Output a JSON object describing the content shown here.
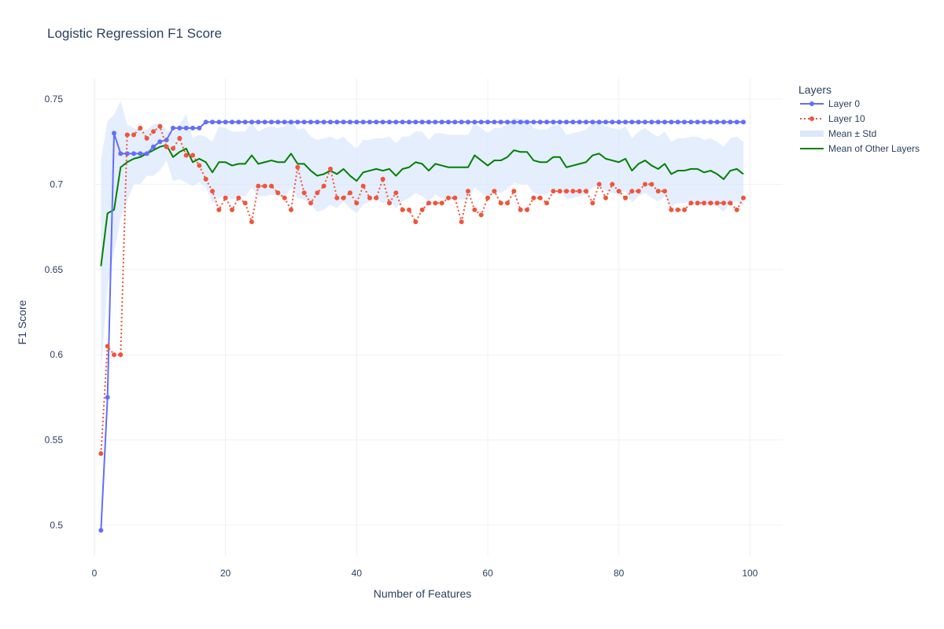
{
  "chart_data": {
    "type": "line",
    "title": "Logistic Regression F1 Score",
    "xlabel": "Number of Features",
    "ylabel": "F1 Score",
    "xlim": [
      0,
      105
    ],
    "ylim": [
      0.482,
      0.762
    ],
    "xticks": [
      0,
      20,
      40,
      60,
      80,
      100
    ],
    "yticks": [
      0.5,
      0.55,
      0.6,
      0.65,
      0.7,
      0.75
    ],
    "ytick_labels": [
      "0.5",
      "0.55",
      "0.6",
      "0.65",
      "0.7",
      "0.75"
    ],
    "grid": true,
    "legend_title": "Layers",
    "legend_position": "top-right outside",
    "x": [
      1,
      2,
      3,
      4,
      5,
      6,
      7,
      8,
      9,
      10,
      11,
      12,
      13,
      14,
      15,
      16,
      17,
      18,
      19,
      20,
      21,
      22,
      23,
      24,
      25,
      26,
      27,
      28,
      29,
      30,
      31,
      32,
      33,
      34,
      35,
      36,
      37,
      38,
      39,
      40,
      41,
      42,
      43,
      44,
      45,
      46,
      47,
      48,
      49,
      50,
      51,
      52,
      53,
      54,
      55,
      56,
      57,
      58,
      59,
      60,
      61,
      62,
      63,
      64,
      65,
      66,
      67,
      68,
      69,
      70,
      71,
      72,
      73,
      74,
      75,
      76,
      77,
      78,
      79,
      80,
      81,
      82,
      83,
      84,
      85,
      86,
      87,
      88,
      89,
      90,
      91,
      92,
      93,
      94,
      95,
      96,
      97,
      98,
      99
    ],
    "series": [
      {
        "name": "Layer 0",
        "color": "#636efa",
        "dash": "solid",
        "markers": true,
        "values": [
          0.497,
          0.575,
          0.73,
          0.718,
          0.718,
          0.718,
          0.718,
          0.718,
          0.722,
          0.725,
          0.726,
          0.733,
          0.733,
          0.733,
          0.733,
          0.733,
          0.7365,
          0.7365,
          0.7365,
          0.7365,
          0.7365,
          0.7365,
          0.7365,
          0.7365,
          0.7365,
          0.7365,
          0.7365,
          0.7365,
          0.7365,
          0.7365,
          0.7365,
          0.7365,
          0.7365,
          0.7365,
          0.7365,
          0.7365,
          0.7365,
          0.7365,
          0.7365,
          0.7365,
          0.7365,
          0.7365,
          0.7365,
          0.7365,
          0.7365,
          0.7365,
          0.7365,
          0.7365,
          0.7365,
          0.7365,
          0.7365,
          0.7365,
          0.7365,
          0.7365,
          0.7365,
          0.7365,
          0.7365,
          0.7365,
          0.7365,
          0.7365,
          0.7365,
          0.7365,
          0.7365,
          0.7365,
          0.7365,
          0.7365,
          0.7365,
          0.7365,
          0.7365,
          0.7365,
          0.7365,
          0.7365,
          0.7365,
          0.7365,
          0.7365,
          0.7365,
          0.7365,
          0.7365,
          0.7365,
          0.7365,
          0.7365,
          0.7365,
          0.7365,
          0.7365,
          0.7365,
          0.7365,
          0.7365,
          0.7365,
          0.7365,
          0.7365,
          0.7365,
          0.7365,
          0.7365,
          0.7365,
          0.7365,
          0.7365,
          0.7365,
          0.7365,
          0.7365
        ]
      },
      {
        "name": "Layer 10",
        "color": "#ef553b",
        "dash": "dot",
        "markers": true,
        "values": [
          0.542,
          0.605,
          0.6,
          0.6,
          0.729,
          0.729,
          0.733,
          0.727,
          0.731,
          0.734,
          0.722,
          0.721,
          0.727,
          0.717,
          0.717,
          0.711,
          0.703,
          0.696,
          0.685,
          0.692,
          0.685,
          0.692,
          0.689,
          0.678,
          0.699,
          0.699,
          0.699,
          0.695,
          0.692,
          0.685,
          0.71,
          0.695,
          0.689,
          0.695,
          0.699,
          0.709,
          0.692,
          0.692,
          0.695,
          0.689,
          0.699,
          0.692,
          0.692,
          0.703,
          0.689,
          0.695,
          0.685,
          0.685,
          0.678,
          0.685,
          0.689,
          0.689,
          0.689,
          0.692,
          0.692,
          0.678,
          0.696,
          0.685,
          0.682,
          0.692,
          0.696,
          0.689,
          0.689,
          0.696,
          0.685,
          0.685,
          0.692,
          0.692,
          0.689,
          0.696,
          0.696,
          0.696,
          0.696,
          0.696,
          0.696,
          0.689,
          0.7,
          0.692,
          0.7,
          0.696,
          0.692,
          0.696,
          0.696,
          0.7,
          0.7,
          0.696,
          0.696,
          0.685,
          0.685,
          0.685,
          0.689,
          0.689,
          0.689,
          0.689,
          0.689,
          0.689,
          0.689,
          0.685,
          0.692
        ]
      },
      {
        "name": "Mean of Other Layers",
        "color": "#008000",
        "dash": "solid",
        "markers": false,
        "values": [
          0.652,
          0.683,
          0.685,
          0.71,
          0.713,
          0.715,
          0.716,
          0.718,
          0.72,
          0.722,
          0.723,
          0.716,
          0.719,
          0.721,
          0.713,
          0.715,
          0.713,
          0.707,
          0.713,
          0.713,
          0.711,
          0.712,
          0.712,
          0.717,
          0.712,
          0.713,
          0.714,
          0.713,
          0.713,
          0.718,
          0.712,
          0.712,
          0.708,
          0.705,
          0.706,
          0.708,
          0.706,
          0.709,
          0.705,
          0.702,
          0.707,
          0.708,
          0.709,
          0.708,
          0.709,
          0.705,
          0.709,
          0.71,
          0.713,
          0.712,
          0.708,
          0.712,
          0.711,
          0.71,
          0.71,
          0.71,
          0.71,
          0.717,
          0.714,
          0.711,
          0.714,
          0.714,
          0.716,
          0.72,
          0.719,
          0.719,
          0.714,
          0.713,
          0.713,
          0.716,
          0.716,
          0.71,
          0.711,
          0.712,
          0.713,
          0.717,
          0.718,
          0.715,
          0.714,
          0.713,
          0.715,
          0.708,
          0.712,
          0.714,
          0.711,
          0.709,
          0.712,
          0.706,
          0.708,
          0.708,
          0.709,
          0.709,
          0.707,
          0.708,
          0.706,
          0.703,
          0.708,
          0.709,
          0.706
        ]
      }
    ],
    "band": {
      "name": "Mean ± Std",
      "color": "#dbe8fc",
      "lower": [
        0.59,
        0.64,
        0.66,
        0.68,
        0.69,
        0.7,
        0.7,
        0.705,
        0.705,
        0.708,
        0.714,
        0.702,
        0.703,
        0.701,
        0.699,
        0.701,
        0.698,
        0.689,
        0.692,
        0.693,
        0.691,
        0.693,
        0.693,
        0.698,
        0.693,
        0.693,
        0.694,
        0.693,
        0.692,
        0.698,
        0.692,
        0.691,
        0.688,
        0.684,
        0.685,
        0.688,
        0.686,
        0.69,
        0.686,
        0.683,
        0.688,
        0.69,
        0.691,
        0.689,
        0.69,
        0.686,
        0.69,
        0.692,
        0.695,
        0.693,
        0.69,
        0.694,
        0.692,
        0.691,
        0.691,
        0.691,
        0.691,
        0.698,
        0.695,
        0.692,
        0.695,
        0.695,
        0.697,
        0.701,
        0.7,
        0.7,
        0.695,
        0.694,
        0.694,
        0.697,
        0.697,
        0.691,
        0.692,
        0.693,
        0.694,
        0.698,
        0.699,
        0.696,
        0.695,
        0.694,
        0.696,
        0.689,
        0.693,
        0.695,
        0.692,
        0.69,
        0.693,
        0.687,
        0.689,
        0.689,
        0.69,
        0.69,
        0.688,
        0.689,
        0.687,
        0.684,
        0.689,
        0.69,
        0.687
      ],
      "upper": [
        0.714,
        0.737,
        0.741,
        0.749,
        0.735,
        0.733,
        0.732,
        0.732,
        0.735,
        0.736,
        0.732,
        0.73,
        0.735,
        0.741,
        0.727,
        0.729,
        0.728,
        0.725,
        0.734,
        0.733,
        0.731,
        0.731,
        0.731,
        0.736,
        0.731,
        0.733,
        0.734,
        0.733,
        0.734,
        0.738,
        0.732,
        0.733,
        0.728,
        0.726,
        0.727,
        0.728,
        0.726,
        0.728,
        0.724,
        0.721,
        0.726,
        0.726,
        0.727,
        0.727,
        0.728,
        0.724,
        0.728,
        0.728,
        0.731,
        0.731,
        0.726,
        0.73,
        0.73,
        0.729,
        0.729,
        0.729,
        0.729,
        0.736,
        0.733,
        0.73,
        0.733,
        0.733,
        0.735,
        0.739,
        0.738,
        0.738,
        0.733,
        0.732,
        0.732,
        0.735,
        0.735,
        0.729,
        0.73,
        0.731,
        0.732,
        0.736,
        0.737,
        0.734,
        0.733,
        0.732,
        0.734,
        0.727,
        0.731,
        0.733,
        0.73,
        0.728,
        0.731,
        0.725,
        0.727,
        0.727,
        0.728,
        0.728,
        0.726,
        0.727,
        0.725,
        0.722,
        0.727,
        0.728,
        0.725
      ]
    },
    "legend": [
      "Layer 0",
      "Layer 10",
      "Mean ± Std",
      "Mean of Other Layers"
    ]
  }
}
